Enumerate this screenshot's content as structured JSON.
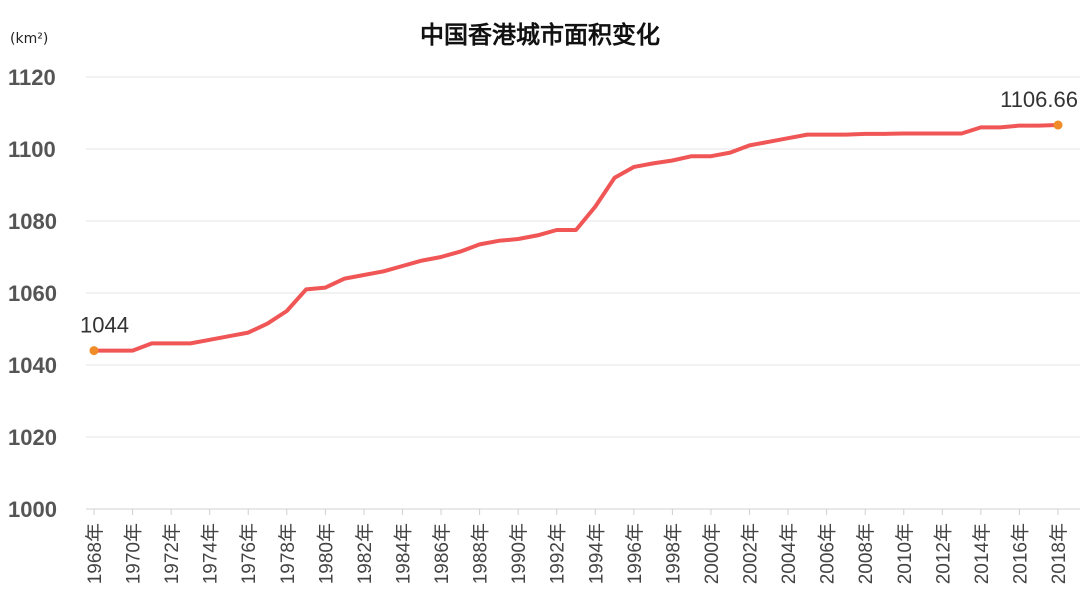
{
  "chart_data": {
    "type": "line",
    "title": "中国香港城市面积变化",
    "ylabel": "(km²)",
    "xlabel": "",
    "ylim": [
      1000,
      1120
    ],
    "yticks": [
      1000,
      1020,
      1040,
      1060,
      1080,
      1100,
      1120
    ],
    "grid": true,
    "x": [
      "1968年",
      "1969年",
      "1970年",
      "1971年",
      "1972年",
      "1973年",
      "1974年",
      "1975年",
      "1976年",
      "1977年",
      "1978年",
      "1979年",
      "1980年",
      "1981年",
      "1982年",
      "1983年",
      "1984年",
      "1985年",
      "1986年",
      "1987年",
      "1988年",
      "1989年",
      "1990年",
      "1991年",
      "1992年",
      "1993年",
      "1994年",
      "1995年",
      "1996年",
      "1997年",
      "1998年",
      "1999年",
      "2000年",
      "2001年",
      "2002年",
      "2003年",
      "2004年",
      "2005年",
      "2006年",
      "2007年",
      "2008年",
      "2009年",
      "2010年",
      "2011年",
      "2012年",
      "2013年",
      "2014年",
      "2015年",
      "2016年",
      "2017年",
      "2018年"
    ],
    "xtick_labels": [
      "1968年",
      "1970年",
      "1972年",
      "1974年",
      "1976年",
      "1978年",
      "1980年",
      "1982年",
      "1984年",
      "1986年",
      "1988年",
      "1990年",
      "1992年",
      "1994年",
      "1996年",
      "1998年",
      "2000年",
      "2002年",
      "2004年",
      "2006年",
      "2008年",
      "2010年",
      "2012年",
      "2014年",
      "2016年",
      "2018年"
    ],
    "series": [
      {
        "color": "#f05656",
        "values": [
          1044,
          1044,
          1044,
          1046,
          1046,
          1046,
          1047,
          1048,
          1049,
          1051.5,
          1055,
          1061,
          1061.5,
          1064,
          1065,
          1066,
          1067.5,
          1069,
          1070,
          1071.5,
          1073.5,
          1074.5,
          1075,
          1076,
          1077.5,
          1077.5,
          1084,
          1092,
          1095,
          1096,
          1096.8,
          1098,
          1098,
          1099,
          1101,
          1102,
          1103,
          1104,
          1104,
          1104,
          1104.2,
          1104.2,
          1104.3,
          1104.3,
          1104.3,
          1104.3,
          1106,
          1106,
          1106.5,
          1106.5,
          1106.66
        ],
        "line_width": 4
      }
    ],
    "highlighted_points": [
      {
        "x": "1968年",
        "value": 1044,
        "label": "1044",
        "color": "#f08c28"
      },
      {
        "x": "2018年",
        "value": 1106.66,
        "label": "1106.66",
        "color": "#f08c28"
      }
    ]
  }
}
